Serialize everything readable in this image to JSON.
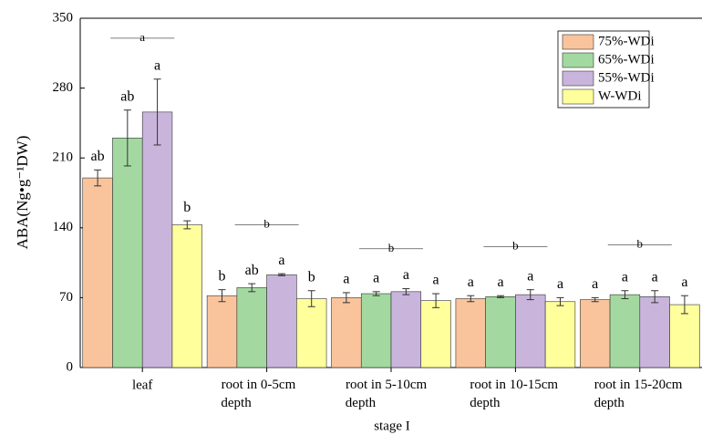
{
  "chart_data": {
    "type": "bar",
    "xlabel": "stage I",
    "ylabel": "ABA(Ng•g⁻¹DW)",
    "categories": [
      "leaf",
      "root in 0-5cm depth",
      "root in 5-10cm depth",
      "root in 10-15cm depth",
      "root in 15-20cm depth"
    ],
    "ylim": [
      0,
      350
    ],
    "yticks": [
      0,
      70,
      140,
      210,
      280,
      350
    ],
    "legend_position": "upper right",
    "series": [
      {
        "name": "75%-WDi",
        "color": "#f9c49c",
        "values": [
          190,
          72,
          70,
          69,
          68
        ],
        "errors": [
          8,
          6,
          5,
          3,
          2
        ],
        "letters": [
          "ab",
          "b",
          "a",
          "a",
          "a"
        ]
      },
      {
        "name": "65%-WDi",
        "color": "#a3d9a0",
        "values": [
          230,
          80,
          74,
          71,
          73
        ],
        "errors": [
          28,
          4,
          2,
          1,
          4
        ],
        "letters": [
          "ab",
          "ab",
          "a",
          "a",
          "a"
        ]
      },
      {
        "name": "55%-WDi",
        "color": "#c9b5db",
        "values": [
          256,
          93,
          76,
          73,
          71
        ],
        "errors": [
          33,
          1,
          3,
          5,
          6
        ],
        "letters": [
          "a",
          "a",
          "a",
          "a",
          "a"
        ]
      },
      {
        "name": "W-WDi",
        "color": "#ffff9c",
        "values": [
          143,
          69,
          67,
          66,
          63
        ],
        "errors": [
          4,
          8,
          7,
          4,
          9
        ],
        "letters": [
          "b",
          "b",
          "a",
          "a",
          "a"
        ]
      }
    ],
    "group_letters": [
      "a",
      "b",
      "b",
      "b",
      "b"
    ],
    "group_letter_levels": [
      330,
      143,
      119,
      121,
      123
    ]
  }
}
